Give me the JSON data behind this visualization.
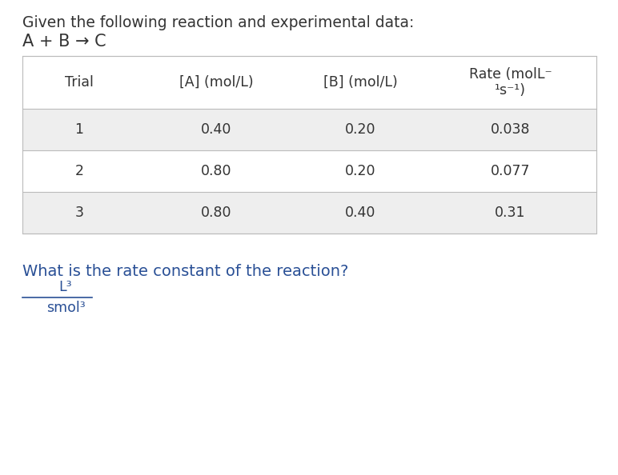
{
  "title_line1": "Given the following reaction and experimental data:",
  "reaction_line": "A + B → C",
  "col_headers_1to3": [
    "Trial",
    "[A] (mol/L)",
    "[B] (mol/L)"
  ],
  "rate_header_line1": "Rate (molL⁻",
  "rate_header_line2": "¹s⁻¹)",
  "rows": [
    [
      "1",
      "0.40",
      "0.20",
      "0.038"
    ],
    [
      "2",
      "0.80",
      "0.20",
      "0.077"
    ],
    [
      "3",
      "0.80",
      "0.40",
      "0.31"
    ]
  ],
  "question": "What is the rate constant of the reaction?",
  "answer_numerator": "L³",
  "answer_denominator": "smol³",
  "row_colors": [
    "#eeeeee",
    "#ffffff",
    "#eeeeee"
  ],
  "header_bg": "#ffffff",
  "text_color": "#333333",
  "title_color": "#333333",
  "reaction_color": "#333333",
  "question_color": "#2a5096",
  "fraction_color": "#2a5096",
  "font_size_title": 13.5,
  "font_size_reaction": 15,
  "font_size_table": 12.5,
  "font_size_question": 14
}
